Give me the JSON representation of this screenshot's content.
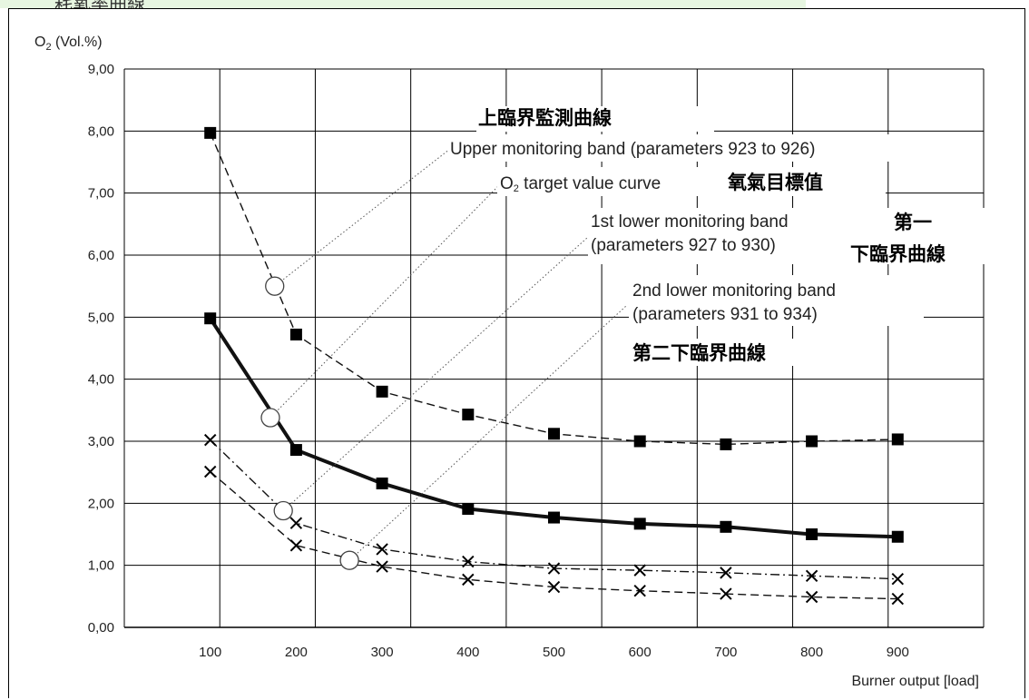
{
  "page": {
    "top_banner_text": "耗氧率曲線"
  },
  "chart_data": {
    "type": "line",
    "ylabel_main": "O",
    "ylabel_sub": "2",
    "ylabel_rest": " (Vol.%)",
    "xlabel": "Burner output [load]",
    "x": [
      100,
      200,
      300,
      400,
      500,
      600,
      700,
      800,
      900
    ],
    "xlim": [
      0,
      1000
    ],
    "ylim": [
      0,
      9
    ],
    "yticks": [
      "0,00",
      "1,00",
      "2,00",
      "3,00",
      "4,00",
      "5,00",
      "6,00",
      "7,00",
      "8,00",
      "9,00"
    ],
    "xticks": [
      "100",
      "200",
      "300",
      "400",
      "500",
      "600",
      "700",
      "800",
      "900"
    ],
    "grid": true,
    "series": [
      {
        "values": [
          7.97,
          4.72,
          3.8,
          3.43,
          3.12,
          3.0,
          2.95,
          3.0,
          3.03
        ],
        "style": "dashed",
        "marker": "square",
        "width": 1.4
      },
      {
        "values": [
          4.98,
          2.86,
          2.32,
          1.91,
          1.77,
          1.67,
          1.62,
          1.5,
          1.46
        ],
        "style": "solid",
        "marker": "square",
        "width": 4
      },
      {
        "values": [
          3.02,
          1.68,
          1.26,
          1.06,
          0.95,
          0.92,
          0.88,
          0.83,
          0.78
        ],
        "style": "dashdot",
        "marker": "x",
        "width": 1.4
      },
      {
        "values": [
          2.51,
          1.32,
          0.98,
          0.77,
          0.65,
          0.59,
          0.54,
          0.49,
          0.46
        ],
        "style": "dashed",
        "marker": "x",
        "width": 1.4
      }
    ],
    "annotations": [
      {
        "text": "上臨界監測曲線",
        "kind": "cjk"
      },
      {
        "text": "Upper monitoring band (parameters 923 to 926)",
        "kind": "en"
      },
      {
        "text_main": "O",
        "text_sub": "2",
        "text_rest": " target value curve",
        "kind": "en-sub"
      },
      {
        "text": "氧氣目標值",
        "kind": "cjk"
      },
      {
        "text": "1st lower monitoring band",
        "kind": "en"
      },
      {
        "text": "(parameters 927 to 930)",
        "kind": "en"
      },
      {
        "text": "第一",
        "kind": "cjk"
      },
      {
        "text": "下臨界曲線",
        "kind": "cjk"
      },
      {
        "text": "2nd lower monitoring band",
        "kind": "en"
      },
      {
        "text": "(parameters 931 to 934)",
        "kind": "en"
      },
      {
        "text": "第二下臨界曲線",
        "kind": "cjk"
      }
    ],
    "callout_points": [
      {
        "x": 175,
        "y": 5.5
      },
      {
        "x": 170,
        "y": 3.38
      },
      {
        "x": 185,
        "y": 1.88
      },
      {
        "x": 262,
        "y": 1.08
      }
    ]
  }
}
